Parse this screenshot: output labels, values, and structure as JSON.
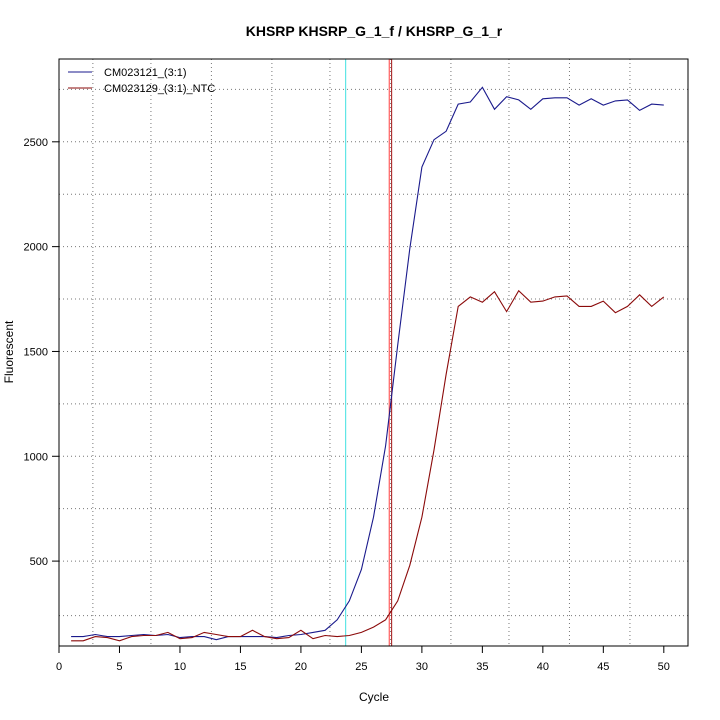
{
  "chart_data": {
    "type": "line",
    "title": "KHSRP  KHSRP_G_1_f / KHSRP_G_1_r",
    "xlabel": "Cycle",
    "ylabel": "Fluorescent",
    "xlim": [
      0,
      52
    ],
    "ylim": [
      95,
      2895
    ],
    "x_ticks": [
      0,
      5,
      10,
      15,
      20,
      25,
      30,
      35,
      40,
      45,
      50
    ],
    "y_ticks": [
      500,
      1000,
      1500,
      2000,
      2500
    ],
    "grid_x": [
      2.8,
      7.6,
      12.6,
      17.6,
      22.4,
      27.4,
      32.4,
      37.2,
      42.2,
      47.2
    ],
    "grid_y": [
      240,
      500,
      750,
      1000,
      1250,
      1500,
      1750,
      2000,
      2250,
      2500,
      2750
    ],
    "threshold_lines": [
      {
        "x": 23.7,
        "color": "#40e0e0"
      },
      {
        "x": 27.3,
        "color": "#ff4040"
      },
      {
        "x": 27.5,
        "color": "#a01010"
      }
    ],
    "legend_position": "top-left",
    "x": [
      1,
      2,
      3,
      4,
      5,
      6,
      7,
      8,
      9,
      10,
      11,
      12,
      13,
      14,
      15,
      16,
      17,
      18,
      19,
      20,
      21,
      22,
      23,
      24,
      25,
      26,
      27,
      28,
      29,
      30,
      31,
      32,
      33,
      34,
      35,
      36,
      37,
      38,
      39,
      40,
      41,
      42,
      43,
      44,
      45,
      46,
      47,
      48,
      49,
      50
    ],
    "series": [
      {
        "name": "CM023121_(3:1)",
        "color": "#1a1a8c",
        "values": [
          140,
          140,
          150,
          140,
          140,
          145,
          150,
          145,
          150,
          135,
          140,
          140,
          125,
          140,
          140,
          140,
          140,
          135,
          145,
          150,
          160,
          170,
          220,
          310,
          460,
          710,
          1050,
          1530,
          1990,
          2380,
          2510,
          2550,
          2680,
          2690,
          2760,
          2655,
          2715,
          2700,
          2655,
          2705,
          2710,
          2710,
          2675,
          2705,
          2675,
          2695,
          2700,
          2650,
          2680,
          2675
        ]
      },
      {
        "name": "CM023129_(3:1)_NTC",
        "color": "#8b0a0a",
        "values": [
          120,
          120,
          140,
          135,
          120,
          140,
          145,
          145,
          160,
          130,
          135,
          160,
          150,
          140,
          140,
          170,
          140,
          130,
          135,
          170,
          130,
          145,
          140,
          145,
          160,
          185,
          220,
          310,
          480,
          710,
          1030,
          1390,
          1715,
          1760,
          1735,
          1785,
          1690,
          1790,
          1735,
          1740,
          1760,
          1765,
          1715,
          1715,
          1740,
          1685,
          1715,
          1770,
          1715,
          1760
        ]
      }
    ]
  }
}
